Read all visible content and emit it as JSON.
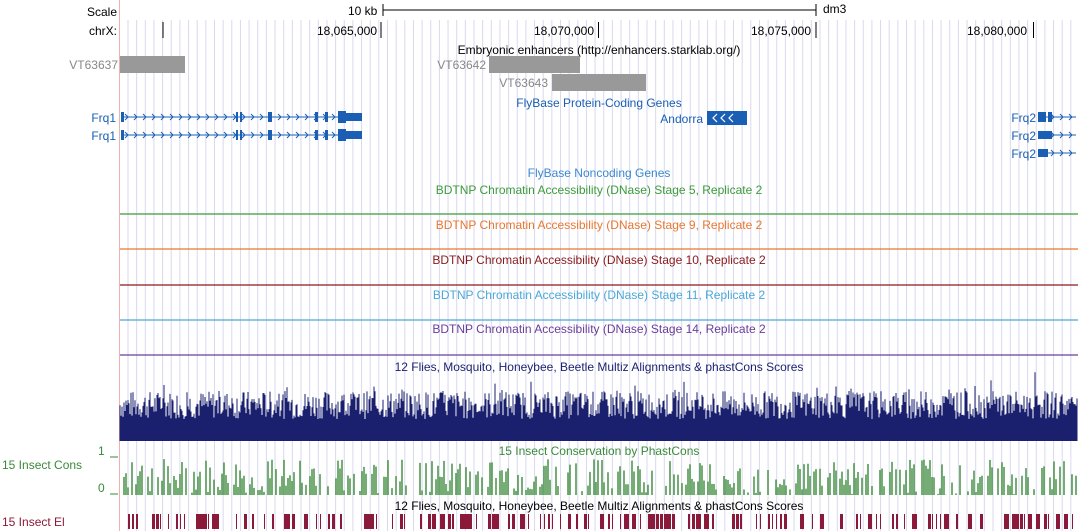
{
  "header": {
    "scale_label": "Scale",
    "chrom_label": "chrX:",
    "scale_bar_text": "10 kb",
    "assembly": "dm3"
  },
  "ruler_ticks": [
    {
      "label": "18,065,000",
      "pos": 18065000
    },
    {
      "label": "18,070,000",
      "pos": 18070000
    },
    {
      "label": "18,075,000",
      "pos": 18075000
    },
    {
      "label": "18,080,000",
      "pos": 18080000
    }
  ],
  "tracks": {
    "enhancers": {
      "title": "Embryonic enhancers (http://enhancers.starklab.org/)",
      "items": [
        {
          "name": "VT63637"
        },
        {
          "name": "VT63642"
        },
        {
          "name": "VT63643"
        }
      ]
    },
    "coding": {
      "title": "FlyBase Protein-Coding Genes",
      "genes": [
        {
          "name": "Frq1"
        },
        {
          "name": "Frq1"
        },
        {
          "name": "Andorra"
        },
        {
          "name": "Frq2"
        },
        {
          "name": "Frq2"
        },
        {
          "name": "Frq2"
        }
      ]
    },
    "noncoding": {
      "title": "FlyBase Noncoding Genes"
    },
    "dnase": [
      {
        "title": "BDTNP Chromatin Accessibility (DNase) Stage 5, Replicate 2",
        "color": "#3a9b3a"
      },
      {
        "title": "BDTNP Chromatin Accessibility (DNase) Stage 9, Replicate 2",
        "color": "#e8772e"
      },
      {
        "title": "BDTNP Chromatin Accessibility (DNase) Stage 10, Replicate 2",
        "color": "#8b1a1a"
      },
      {
        "title": "BDTNP Chromatin Accessibility (DNase) Stage 11, Replicate 2",
        "color": "#4aa8d8"
      },
      {
        "title": "BDTNP Chromatin Accessibility (DNase) Stage 14, Replicate 2",
        "color": "#6a3d9a"
      }
    ],
    "multiz": {
      "title": "12 Flies, Mosquito, Honeybee, Beetle Multiz Alignments & phastCons Scores",
      "color": "#1a1f6e"
    },
    "phastcons": {
      "title": "15 Insect Conservation by PhastCons",
      "side_label": "15 Insect Cons",
      "axis_top": "1",
      "axis_bottom": "0",
      "color": "#3a8a3a"
    },
    "elements": {
      "title": "12 Flies, Mosquito, Honeybee, Beetle Multiz Alignments & phastCons Scores",
      "side_label": "15 Insect El",
      "color": "#8b1a3a"
    }
  },
  "colors": {
    "gene": "#1a5fb4",
    "enhancer": "#999999",
    "grid": "#d8d8f0",
    "left_rule": "#f0b0b0"
  }
}
